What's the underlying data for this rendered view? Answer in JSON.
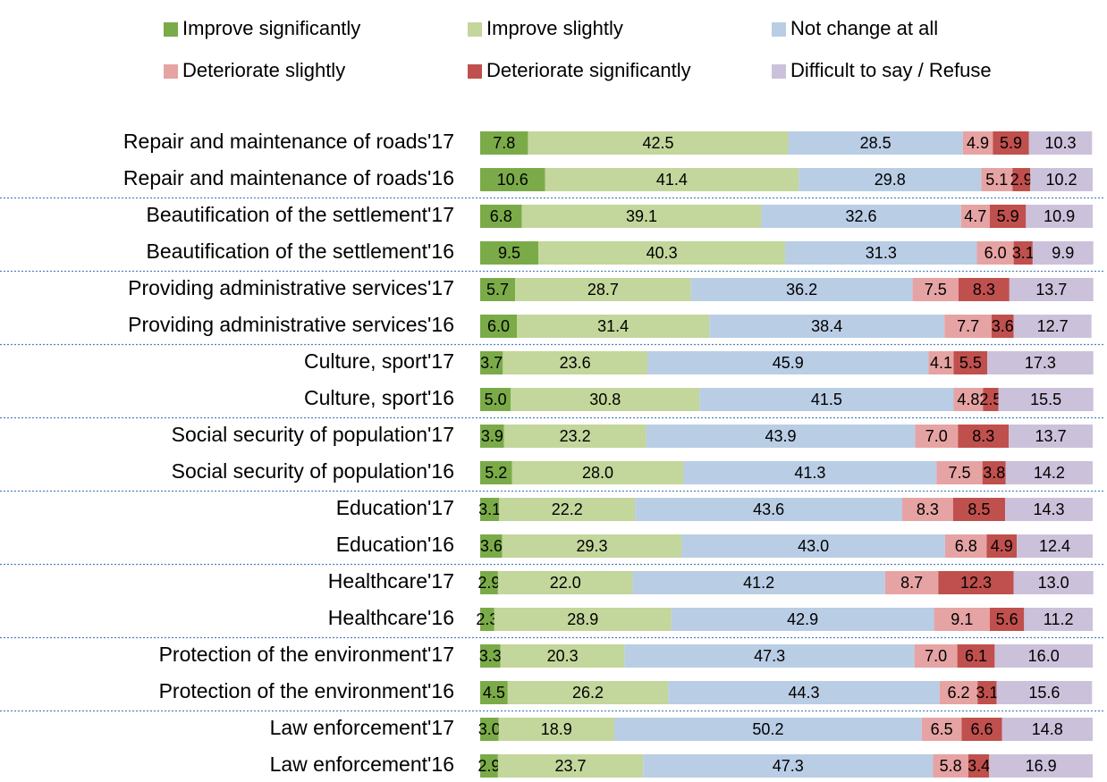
{
  "chart_data": {
    "type": "stacked-barh",
    "categories": [
      "Repair and maintenance of roads'17",
      "Repair and maintenance of roads'16",
      "Beautification of the settlement'17",
      "Beautification of the settlement'16",
      "Providing administrative services'17",
      "Providing administrative services'16",
      "Culture, sport'17",
      "Culture, sport'16",
      "Social security of population'17",
      "Social security of population'16",
      "Education'17",
      "Education'16",
      "Healthcare'17",
      "Healthcare'16",
      "Protection of the environment'17",
      "Protection of the environment'16",
      "Law enforcement'17",
      "Law enforcement'16"
    ],
    "xlim": [
      0,
      100
    ],
    "series": [
      {
        "name": "Improve significantly",
        "color": "#7aab48",
        "values": [
          7.8,
          10.6,
          6.8,
          9.5,
          5.7,
          6.0,
          3.7,
          5.0,
          3.9,
          5.2,
          3.1,
          3.6,
          2.9,
          2.3,
          3.3,
          4.5,
          3.0,
          2.9
        ],
        "value_labels": [
          "7.8",
          "10.6",
          "6.8",
          "9.5",
          "5.7",
          "6.0",
          "3.7",
          "5.0",
          "3.9",
          "5.2",
          "3.1",
          "3.6",
          "2.9",
          "2.3",
          "3.3",
          "4.5",
          "3.0",
          "2.9"
        ]
      },
      {
        "name": "Improve slightly",
        "color": "#c3d69b",
        "values": [
          42.5,
          41.4,
          39.1,
          40.3,
          28.7,
          31.4,
          23.6,
          30.8,
          23.2,
          28.0,
          22.2,
          29.3,
          22.0,
          28.9,
          20.3,
          26.2,
          18.9,
          23.7
        ],
        "value_labels": [
          "42.5",
          "41.4",
          "39.1",
          "40.3",
          "28.7",
          "31.4",
          "23.6",
          "30.8",
          "23.2",
          "28.0",
          "22.2",
          "29.3",
          "22.0",
          "28.9",
          "20.3",
          "26.2",
          "18.9",
          "23.7"
        ]
      },
      {
        "name": "Not change at all",
        "color": "#b9cde5",
        "values": [
          28.5,
          29.8,
          32.6,
          31.3,
          36.2,
          38.4,
          45.9,
          41.5,
          43.9,
          41.3,
          43.6,
          43.0,
          41.2,
          42.9,
          47.3,
          44.3,
          50.2,
          47.3
        ],
        "value_labels": [
          "28.5",
          "29.8",
          "32.6",
          "31.3",
          "36.2",
          "38.4",
          "45.9",
          "41.5",
          "43.9",
          "41.3",
          "43.6",
          "43.0",
          "41.2",
          "42.9",
          "47.3",
          "44.3",
          "50.2",
          "47.3"
        ]
      },
      {
        "name": "Deteriorate slightly",
        "color": "#e6a3a3",
        "values": [
          4.9,
          5.1,
          4.7,
          6.0,
          7.5,
          7.7,
          4.1,
          4.8,
          7.0,
          7.5,
          8.3,
          6.8,
          8.7,
          9.1,
          7.0,
          6.2,
          6.5,
          5.8
        ],
        "value_labels": [
          "4.9",
          "5.1",
          "4.7",
          "6.0",
          "7.5",
          "7.7",
          "4.1",
          "4.8",
          "7.0",
          "7.5",
          "8.3",
          "6.8",
          "8.7",
          "9.1",
          "7.0",
          "6.2",
          "6.5",
          "5.8"
        ]
      },
      {
        "name": "Deteriorate significantly",
        "color": "#c0504d",
        "values": [
          5.9,
          2.9,
          5.9,
          3.1,
          8.3,
          3.6,
          5.5,
          2.5,
          8.3,
          3.8,
          8.5,
          4.9,
          12.3,
          5.6,
          6.1,
          3.1,
          6.6,
          3.4
        ],
        "value_labels": [
          "5.9",
          "2.9",
          "5.9",
          "3.1",
          "8.3",
          "3.6",
          "5.5",
          "2.5",
          "8.3",
          "3.8",
          "8.5",
          "4.9",
          "12.3",
          "5.6",
          "6.1",
          "3.1",
          "6.6",
          "3.4"
        ]
      },
      {
        "name": "Difficult to say / Refuse",
        "color": "#ccc1da",
        "values": [
          10.3,
          10.2,
          10.9,
          9.9,
          13.7,
          12.7,
          17.3,
          15.5,
          13.7,
          14.2,
          14.3,
          12.4,
          13.0,
          11.2,
          16.0,
          15.6,
          14.8,
          16.9
        ],
        "value_labels": [
          "10.3",
          "10.2",
          "10.9",
          "9.9",
          "13.7",
          "12.7",
          "17.3",
          "15.5",
          "13.7",
          "14.2",
          "14.3",
          "12.4",
          "13.0",
          "11.2",
          "16.0",
          "15.6",
          "14.8",
          "16.9"
        ]
      }
    ]
  }
}
